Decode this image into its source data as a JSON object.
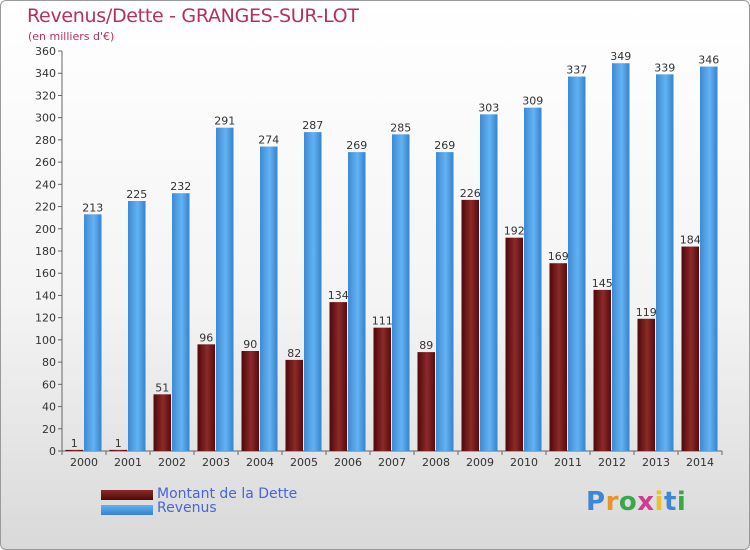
{
  "header": {
    "title": "Revenus/Dette - GRANGES-SUR-LOT",
    "subtitle": "(en milliers d'€)"
  },
  "legend": {
    "items": [
      {
        "label": "Montant de la Dette",
        "color": "#6b0d0d"
      },
      {
        "label": "Revenus",
        "color": "#4a9be0"
      }
    ]
  },
  "logo": {
    "text": "Proxiti"
  },
  "chart_data": {
    "type": "bar",
    "categories": [
      "2000",
      "2001",
      "2002",
      "2003",
      "2004",
      "2005",
      "2006",
      "2007",
      "2008",
      "2009",
      "2010",
      "2011",
      "2012",
      "2013",
      "2014"
    ],
    "series": [
      {
        "name": "Montant de la Dette",
        "color": "#6b0d0d",
        "values": [
          1,
          1,
          51,
          96,
          90,
          82,
          134,
          111,
          89,
          226,
          192,
          169,
          145,
          119,
          184
        ]
      },
      {
        "name": "Revenus",
        "color": "#4a9be0",
        "values": [
          213,
          225,
          232,
          291,
          274,
          287,
          269,
          285,
          269,
          303,
          309,
          337,
          349,
          339,
          346
        ]
      }
    ],
    "ylim": [
      0,
      360
    ],
    "ytick_step": 20,
    "grid": false,
    "legend_position": "bottom-left"
  }
}
